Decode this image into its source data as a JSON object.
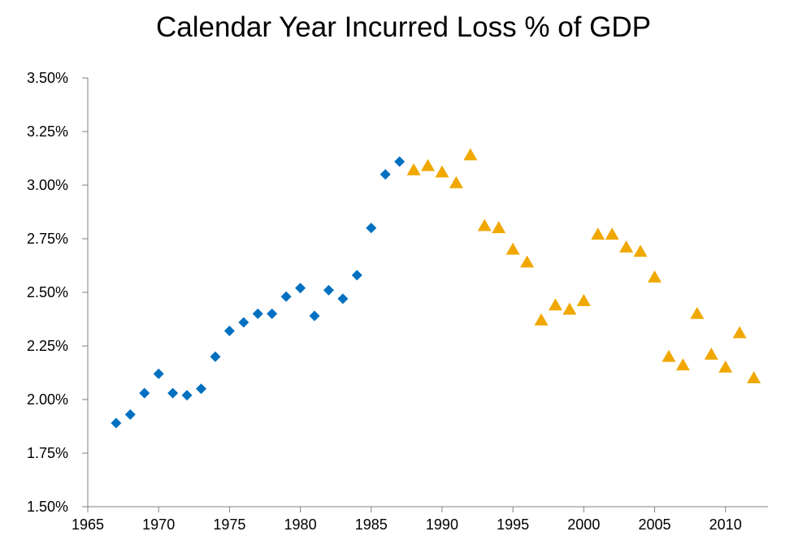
{
  "chart_data": {
    "type": "scatter",
    "title": "Calendar Year Incurred Loss % of GDP",
    "xlabel": "",
    "ylabel": "",
    "xlim": [
      1965,
      2013
    ],
    "ylim": [
      1.5,
      3.5
    ],
    "x_ticks": [
      "1965",
      "1970",
      "1975",
      "1980",
      "1985",
      "1990",
      "1995",
      "2000",
      "2005",
      "2010"
    ],
    "y_ticks": [
      "1.50%",
      "1.75%",
      "2.00%",
      "2.25%",
      "2.50%",
      "2.75%",
      "3.00%",
      "3.25%",
      "3.50%"
    ],
    "grid": false,
    "legend": "none",
    "series": [
      {
        "marker": "diamond",
        "color": "#0070C0",
        "points": [
          [
            1967,
            1.89
          ],
          [
            1968,
            1.93
          ],
          [
            1969,
            2.03
          ],
          [
            1970,
            2.12
          ],
          [
            1971,
            2.03
          ],
          [
            1972,
            2.02
          ],
          [
            1973,
            2.05
          ],
          [
            1974,
            2.2
          ],
          [
            1975,
            2.32
          ],
          [
            1976,
            2.36
          ],
          [
            1977,
            2.4
          ],
          [
            1978,
            2.4
          ],
          [
            1979,
            2.48
          ],
          [
            1980,
            2.52
          ],
          [
            1981,
            2.39
          ],
          [
            1982,
            2.51
          ],
          [
            1983,
            2.47
          ],
          [
            1984,
            2.58
          ],
          [
            1985,
            2.8
          ],
          [
            1986,
            3.05
          ],
          [
            1987,
            3.11
          ]
        ]
      },
      {
        "marker": "triangle",
        "color": "#F0A800",
        "points": [
          [
            1988,
            3.07
          ],
          [
            1989,
            3.09
          ],
          [
            1990,
            3.06
          ],
          [
            1991,
            3.01
          ],
          [
            1992,
            3.14
          ],
          [
            1993,
            2.81
          ],
          [
            1994,
            2.8
          ],
          [
            1995,
            2.7
          ],
          [
            1996,
            2.64
          ],
          [
            1997,
            2.37
          ],
          [
            1998,
            2.44
          ],
          [
            1999,
            2.42
          ],
          [
            2000,
            2.46
          ],
          [
            2001,
            2.77
          ],
          [
            2002,
            2.77
          ],
          [
            2003,
            2.71
          ],
          [
            2004,
            2.69
          ],
          [
            2005,
            2.57
          ],
          [
            2006,
            2.2
          ],
          [
            2007,
            2.16
          ],
          [
            2008,
            2.4
          ],
          [
            2009,
            2.21
          ],
          [
            2010,
            2.15
          ],
          [
            2011,
            2.31
          ],
          [
            2012,
            2.1
          ]
        ]
      }
    ]
  }
}
